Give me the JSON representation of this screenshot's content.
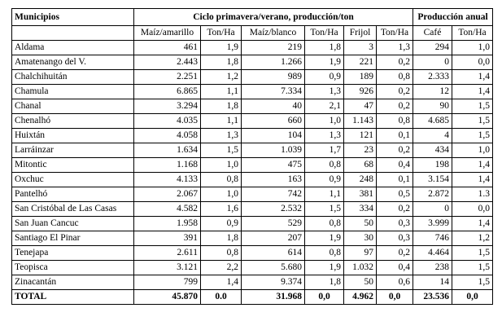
{
  "table": {
    "header": {
      "municipios": "Municipios",
      "ciclo": "Ciclo primavera/verano, producción/ton",
      "produccion_anual": "Producción anual"
    },
    "subheaders": [
      "Maíz/amarillo",
      "Ton/Ha",
      "Maíz/blanco",
      "Ton/Ha",
      "Frijol",
      "Ton/Ha",
      "Café",
      "Ton/Ha"
    ],
    "rows": [
      [
        "Aldama",
        "461",
        "1,9",
        "219",
        "1,8",
        "3",
        "1,3",
        "294",
        "1,0"
      ],
      [
        "Amatenango del V.",
        "2.443",
        "1,8",
        "1.266",
        "1,9",
        "221",
        "0,2",
        "0",
        "0,0"
      ],
      [
        "Chalchihuitán",
        "2.251",
        "1,2",
        "989",
        "0,9",
        "189",
        "0,8",
        "2.333",
        "1,4"
      ],
      [
        "Chamula",
        "6.865",
        "1,1",
        "7.334",
        "1,3",
        "926",
        "0,2",
        "12",
        "1,4"
      ],
      [
        "Chanal",
        "3.294",
        "1,8",
        "40",
        "2,1",
        "47",
        "0,2",
        "90",
        "1,5"
      ],
      [
        "Chenalhó",
        "4.035",
        "1,1",
        "660",
        "1,0",
        "1.143",
        "0,8",
        "4.685",
        "1,5"
      ],
      [
        "Huixtán",
        "4.058",
        "1,3",
        "104",
        "1,3",
        "121",
        "0,1",
        "4",
        "1,5"
      ],
      [
        "Larráinzar",
        "1.634",
        "1,5",
        "1.039",
        "1,7",
        "23",
        "0,2",
        "434",
        "1,0"
      ],
      [
        "Mitontic",
        "1.168",
        "1,0",
        "475",
        "0,8",
        "68",
        "0,4",
        "198",
        "1,4"
      ],
      [
        "Oxchuc",
        "4.133",
        "0,8",
        "163",
        "0,9",
        "248",
        "0,1",
        "3.154",
        "1,4"
      ],
      [
        "Pantelhó",
        "2.067",
        "1,0",
        "742",
        "1,1",
        "381",
        "0,5",
        "2.872",
        "1.3"
      ],
      [
        "San Cristóbal de Las Casas",
        "4.582",
        "1,6",
        "2.532",
        "1,5",
        "334",
        "0,2",
        "0",
        "0,0"
      ],
      [
        "San Juan Cancuc",
        "1.958",
        "0,9",
        "529",
        "0,8",
        "50",
        "0,3",
        "3.999",
        "1,4"
      ],
      [
        "Santiago El Pinar",
        "391",
        "1,8",
        "207",
        "1,9",
        "30",
        "0,3",
        "746",
        "1,2"
      ],
      [
        "Tenejapa",
        "2.611",
        "0,8",
        "614",
        "0,8",
        "97",
        "0,2",
        "4.464",
        "1,5"
      ],
      [
        "Teopisca",
        "3.121",
        "2,2",
        "5.680",
        "1,9",
        "1.032",
        "0,4",
        "238",
        "1,5"
      ],
      [
        "Zinacantán",
        "799",
        "1,4",
        "9.374",
        "1,8",
        "50",
        "0,6",
        "14",
        "1,5"
      ]
    ],
    "total": [
      "TOTAL",
      "45.870",
      "0.0",
      "31.968",
      "0,0",
      "4.962",
      "0,0",
      "23.536",
      "0,0"
    ]
  }
}
